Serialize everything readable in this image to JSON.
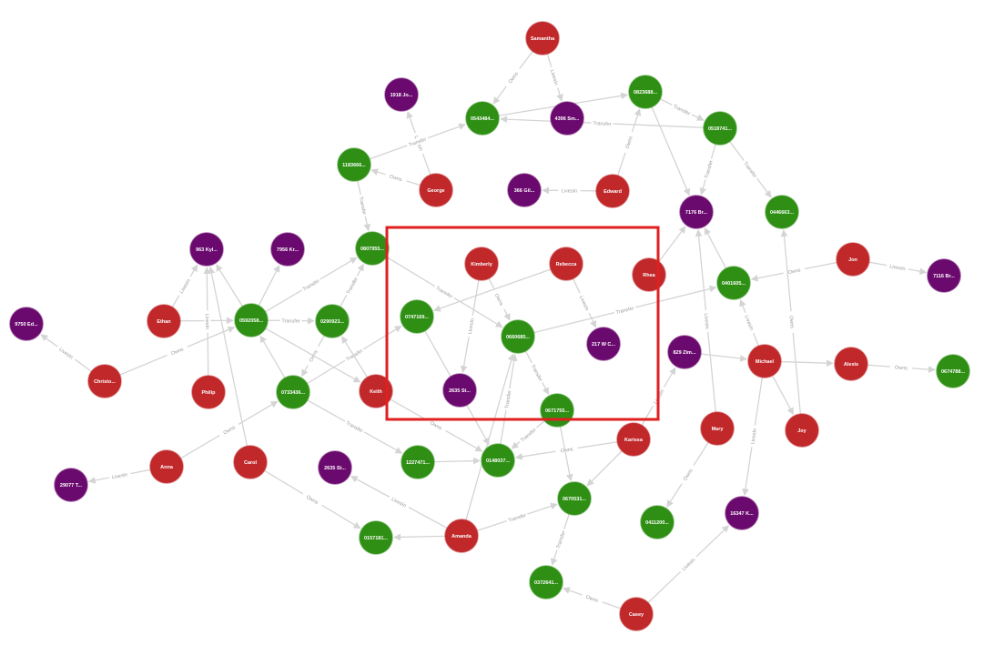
{
  "colors": {
    "person": "#c0282a",
    "address": "#6b0a6e",
    "account": "#2e8f14",
    "edge": "#d4d4d4",
    "edge_label": "#9a9a9a",
    "highlight": "#e02020"
  },
  "nodes": [
    {
      "id": "samantha",
      "label": "Samantha",
      "type": "person"
    },
    {
      "id": "acc_0823",
      "label": "0823688...",
      "type": "account"
    },
    {
      "id": "addr_1918",
      "label": "1918 Jo...",
      "type": "address"
    },
    {
      "id": "acc_0543",
      "label": "0543484...",
      "type": "account"
    },
    {
      "id": "addr_4396",
      "label": "4396 Sm...",
      "type": "address"
    },
    {
      "id": "acc_0518",
      "label": "0518741...",
      "type": "account"
    },
    {
      "id": "acc_1183",
      "label": "1183666...",
      "type": "account"
    },
    {
      "id": "george",
      "label": "George",
      "type": "person"
    },
    {
      "id": "addr_366",
      "label": "366 Gil...",
      "type": "address"
    },
    {
      "id": "edward",
      "label": "Edward",
      "type": "person"
    },
    {
      "id": "addr_7176",
      "label": "7176 Br...",
      "type": "address"
    },
    {
      "id": "acc_0446",
      "label": "0446663...",
      "type": "account"
    },
    {
      "id": "addr_963",
      "label": "963 Kyl...",
      "type": "address"
    },
    {
      "id": "addr_7956",
      "label": "7956 Kr...",
      "type": "address"
    },
    {
      "id": "acc_0807",
      "label": "0807955...",
      "type": "account"
    },
    {
      "id": "kimberly",
      "label": "Kimberly",
      "type": "person"
    },
    {
      "id": "rebecca",
      "label": "Rebecca",
      "type": "person"
    },
    {
      "id": "rhea",
      "label": "Rhea",
      "type": "person"
    },
    {
      "id": "acc_0401",
      "label": "0401605...",
      "type": "account"
    },
    {
      "id": "jon",
      "label": "Jon",
      "type": "person"
    },
    {
      "id": "addr_7116",
      "label": "7116 Br...",
      "type": "address"
    },
    {
      "id": "addr_9750",
      "label": "9750 Ed...",
      "type": "address"
    },
    {
      "id": "ethan",
      "label": "Ethan",
      "type": "person"
    },
    {
      "id": "acc_0592",
      "label": "0592058...",
      "type": "account"
    },
    {
      "id": "acc_0290",
      "label": "0290923...",
      "type": "account"
    },
    {
      "id": "acc_0747",
      "label": "0747169...",
      "type": "account"
    },
    {
      "id": "acc_0660",
      "label": "0660685...",
      "type": "account"
    },
    {
      "id": "addr_217",
      "label": "217 W C...",
      "type": "address"
    },
    {
      "id": "addr_829",
      "label": "829 Zim...",
      "type": "address"
    },
    {
      "id": "michael",
      "label": "Michael",
      "type": "person"
    },
    {
      "id": "alexis",
      "label": "Alexis",
      "type": "person"
    },
    {
      "id": "acc_0674",
      "label": "0674788...",
      "type": "account"
    },
    {
      "id": "christo",
      "label": "Christo...",
      "type": "person"
    },
    {
      "id": "philip",
      "label": "Philip",
      "type": "person"
    },
    {
      "id": "acc_0733",
      "label": "0733436...",
      "type": "account"
    },
    {
      "id": "keith",
      "label": "Keith",
      "type": "person"
    },
    {
      "id": "addr_2635a",
      "label": "2635 St...",
      "type": "address"
    },
    {
      "id": "acc_0671",
      "label": "0671755...",
      "type": "account"
    },
    {
      "id": "mary",
      "label": "Mary",
      "type": "person"
    },
    {
      "id": "joy",
      "label": "Joy",
      "type": "person"
    },
    {
      "id": "karissa",
      "label": "Karissa",
      "type": "person"
    },
    {
      "id": "anna",
      "label": "Anna",
      "type": "person"
    },
    {
      "id": "carol",
      "label": "Carol",
      "type": "person"
    },
    {
      "id": "addr_2635b",
      "label": "2635 St...",
      "type": "address"
    },
    {
      "id": "acc_1227",
      "label": "1227471...",
      "type": "account"
    },
    {
      "id": "acc_0148",
      "label": "0148037...",
      "type": "account"
    },
    {
      "id": "addr_29077",
      "label": "29077 T...",
      "type": "address"
    },
    {
      "id": "acc_0670",
      "label": "0670531...",
      "type": "account"
    },
    {
      "id": "acc_0411",
      "label": "0411200...",
      "type": "account"
    },
    {
      "id": "addr_16347",
      "label": "16347 K...",
      "type": "address"
    },
    {
      "id": "acc_0157",
      "label": "0157181...",
      "type": "account"
    },
    {
      "id": "amanda",
      "label": "Amanda",
      "type": "person"
    },
    {
      "id": "acc_0372",
      "label": "0372641...",
      "type": "account"
    },
    {
      "id": "casey",
      "label": "Casey",
      "type": "person"
    }
  ],
  "edges": [
    {
      "from": "samantha",
      "to": "acc_0543",
      "label": "Owns"
    },
    {
      "from": "samantha",
      "to": "addr_4396",
      "label": "LivesIn"
    },
    {
      "from": "acc_0543",
      "to": "acc_0823",
      "label": ""
    },
    {
      "from": "acc_0823",
      "to": "acc_0518",
      "label": "Transfer"
    },
    {
      "from": "acc_0518",
      "to": "acc_0543",
      "label": "Transfer"
    },
    {
      "from": "edward",
      "to": "acc_0823",
      "label": "Owns"
    },
    {
      "from": "acc_0823",
      "to": "addr_7176",
      "label": ""
    },
    {
      "from": "acc_0518",
      "to": "acc_0446",
      "label": "Transfer"
    },
    {
      "from": "acc_0518",
      "to": "addr_7176",
      "label": "Transfer"
    },
    {
      "from": "george",
      "to": "addr_1918",
      "label": "LivesIn"
    },
    {
      "from": "george",
      "to": "acc_1183",
      "label": "Owns"
    },
    {
      "from": "acc_1183",
      "to": "acc_0543",
      "label": "Transfer"
    },
    {
      "from": "edward",
      "to": "addr_366",
      "label": "LivesIn"
    },
    {
      "from": "acc_1183",
      "to": "acc_0807",
      "label": "Transfer"
    },
    {
      "from": "ethan",
      "to": "addr_963",
      "label": "LivesIn"
    },
    {
      "from": "ethan",
      "to": "acc_0592",
      "label": ""
    },
    {
      "from": "acc_0592",
      "to": "addr_7956",
      "label": ""
    },
    {
      "from": "acc_0592",
      "to": "acc_0807",
      "label": "Transfer"
    },
    {
      "from": "acc_0290",
      "to": "acc_0807",
      "label": "Transfer"
    },
    {
      "from": "acc_0807",
      "to": "acc_0660",
      "label": "Transfer"
    },
    {
      "from": "kimberly",
      "to": "addr_2635a",
      "label": "LivesIn"
    },
    {
      "from": "kimberly",
      "to": "acc_0660",
      "label": "Owns"
    },
    {
      "from": "rebecca",
      "to": "addr_217",
      "label": "LivesIn"
    },
    {
      "from": "rebecca",
      "to": "acc_0747",
      "label": ""
    },
    {
      "from": "acc_0660",
      "to": "acc_0401",
      "label": "Transfer"
    },
    {
      "from": "rhea",
      "to": "addr_7176",
      "label": ""
    },
    {
      "from": "jon",
      "to": "acc_0401",
      "label": "Owns"
    },
    {
      "from": "jon",
      "to": "addr_7116",
      "label": "LivesIn"
    },
    {
      "from": "acc_0401",
      "to": "addr_7176",
      "label": ""
    },
    {
      "from": "michael",
      "to": "acc_0401",
      "label": "LivesIn"
    },
    {
      "from": "mary",
      "to": "addr_7176",
      "label": "LivesIn"
    },
    {
      "from": "christo",
      "to": "addr_9750",
      "label": "LivesIn"
    },
    {
      "from": "christo",
      "to": "acc_0592",
      "label": "Owns"
    },
    {
      "from": "acc_0592",
      "to": "acc_0290",
      "label": "Transfer"
    },
    {
      "from": "acc_0592",
      "to": "addr_963",
      "label": ""
    },
    {
      "from": "acc_0290",
      "to": "acc_0733",
      "label": "Owns"
    },
    {
      "from": "acc_0733",
      "to": "acc_0747",
      "label": "Transfer"
    },
    {
      "from": "philip",
      "to": "addr_963",
      "label": "LivesIn"
    },
    {
      "from": "acc_0733",
      "to": "acc_0592",
      "label": ""
    },
    {
      "from": "acc_0592",
      "to": "keith",
      "label": ""
    },
    {
      "from": "keith",
      "to": "acc_0148",
      "label": "Owns"
    },
    {
      "from": "acc_0747",
      "to": "acc_0148",
      "label": "Transfer"
    },
    {
      "from": "acc_0660",
      "to": "acc_0671",
      "label": "Transfer"
    },
    {
      "from": "acc_0671",
      "to": "acc_0148",
      "label": "Transfer"
    },
    {
      "from": "acc_0148",
      "to": "acc_0660",
      "label": "Transfer"
    },
    {
      "from": "addr_829",
      "to": "michael",
      "label": ""
    },
    {
      "from": "michael",
      "to": "alexis",
      "label": ""
    },
    {
      "from": "alexis",
      "to": "acc_0674",
      "label": "Owns"
    },
    {
      "from": "michael",
      "to": "joy",
      "label": ""
    },
    {
      "from": "joy",
      "to": "acc_0446",
      "label": "Owns"
    },
    {
      "from": "michael",
      "to": "addr_16347",
      "label": "LivesIn"
    },
    {
      "from": "mary",
      "to": "acc_0411",
      "label": "Owns"
    },
    {
      "from": "karissa",
      "to": "acc_0148",
      "label": "Owns"
    },
    {
      "from": "karissa",
      "to": "addr_829",
      "label": "LivesIn"
    },
    {
      "from": "karissa",
      "to": "acc_0670",
      "label": ""
    },
    {
      "from": "acc_0671",
      "to": "acc_0670",
      "label": ""
    },
    {
      "from": "acc_0733",
      "to": "acc_1227",
      "label": "Transfer"
    },
    {
      "from": "acc_1227",
      "to": "acc_0148",
      "label": ""
    },
    {
      "from": "anna",
      "to": "addr_29077",
      "label": "LivesIn"
    },
    {
      "from": "anna",
      "to": "acc_0733",
      "label": "Owns"
    },
    {
      "from": "carol",
      "to": "addr_963",
      "label": ""
    },
    {
      "from": "carol",
      "to": "acc_0157",
      "label": "Owns"
    },
    {
      "from": "amanda",
      "to": "addr_2635b",
      "label": "LivesIn"
    },
    {
      "from": "amanda",
      "to": "acc_0157",
      "label": ""
    },
    {
      "from": "amanda",
      "to": "acc_0670",
      "label": "Transfer"
    },
    {
      "from": "amanda",
      "to": "acc_0660",
      "label": ""
    },
    {
      "from": "acc_0670",
      "to": "acc_0372",
      "label": "Transfer"
    },
    {
      "from": "casey",
      "to": "acc_0372",
      "label": "Owns"
    },
    {
      "from": "casey",
      "to": "addr_16347",
      "label": "LivesIn"
    },
    {
      "from": "keith",
      "to": "acc_0290",
      "label": ""
    }
  ]
}
